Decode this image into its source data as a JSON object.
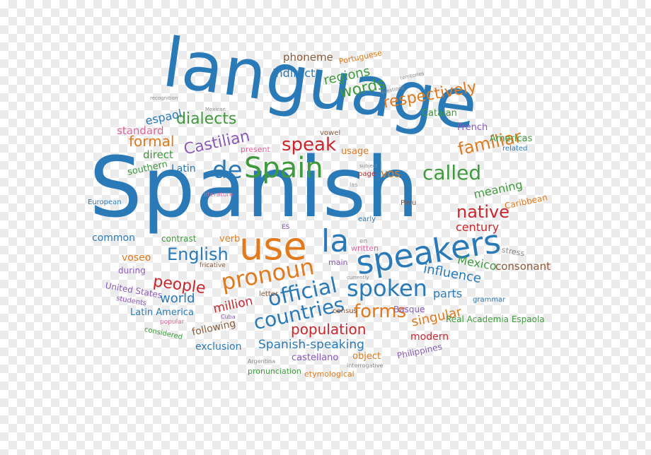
{
  "colors": {
    "blue": "#2a7ab8",
    "green": "#3e9a3c",
    "orange": "#e07a1c",
    "red": "#c9262e",
    "purple": "#8a5bb8",
    "brown": "#8a5a3a",
    "pink": "#e0669c",
    "gray": "#8a8a8a"
  },
  "words": [
    "language",
    "Spanish",
    "use",
    "la",
    "speakers",
    "Spain",
    "de",
    "speak",
    "called",
    "pronoun",
    "official",
    "spoken",
    "countries",
    "forms",
    "population",
    "English",
    "people",
    "native",
    "familiar",
    "respectively",
    "dialects",
    "Castilian",
    "words",
    "regions",
    "indirect",
    "phoneme",
    "Portuguese",
    "espaol",
    "standard",
    "formal",
    "direct",
    "Latin",
    "southern",
    "European",
    "common",
    "contrast",
    "verb",
    "voseo",
    "during",
    "United States",
    "students",
    "world",
    "million",
    "Latin America",
    "following",
    "exclusion",
    "considered",
    "popular",
    "Spanish-speaking",
    "castellano",
    "object",
    "modern",
    "singular",
    "Basque",
    "Real Academia Espaola",
    "Philippines",
    "pronunciation",
    "etymological",
    "Argentina",
    "Cuba",
    "interrogative",
    "influence",
    "parts",
    "Mexico",
    "consonant",
    "stress",
    "grammar",
    "century",
    "meaning",
    "Caribbean",
    "Americas",
    "related",
    "French",
    "Catalan",
    "vos",
    "usage",
    "page",
    "present",
    "vowel",
    "subject",
    "las",
    "literature",
    "Peru",
    "early",
    "ES",
    "en",
    "written",
    "main",
    "letter",
    "fricative",
    "currently",
    "census",
    "recognition",
    "Mexican",
    "territories",
    "questions"
  ]
}
